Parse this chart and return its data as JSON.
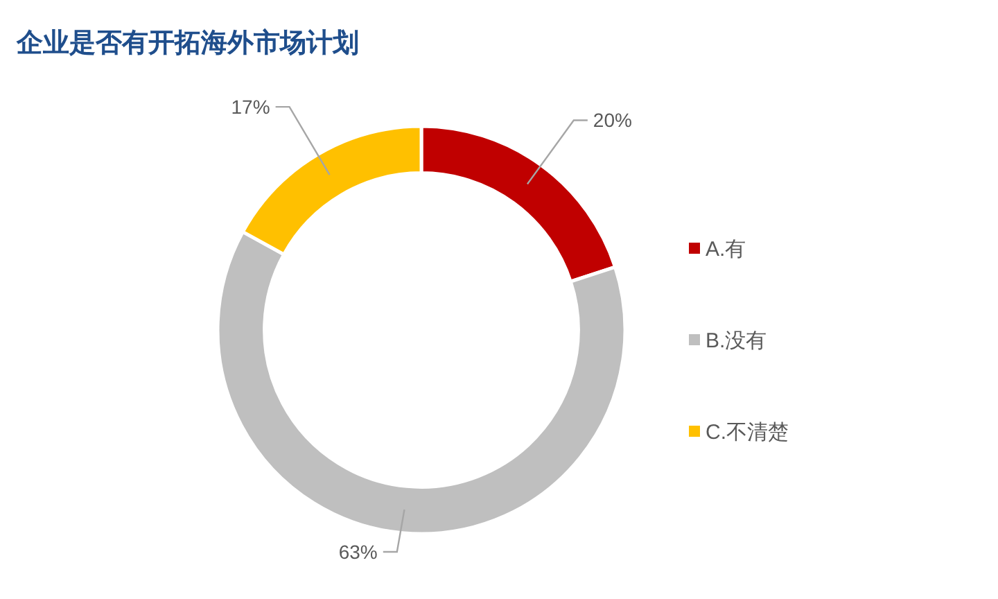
{
  "chart_data": {
    "type": "donut",
    "title": "企业是否有开拓海外市场计划",
    "categories": [
      "A.有",
      "B.没有",
      "C.不清楚"
    ],
    "values": [
      20,
      63,
      17
    ],
    "colors": [
      "#c00000",
      "#bfbfbf",
      "#ffc000"
    ],
    "value_labels": [
      "20%",
      "63%",
      "17%"
    ],
    "legend": "right"
  }
}
